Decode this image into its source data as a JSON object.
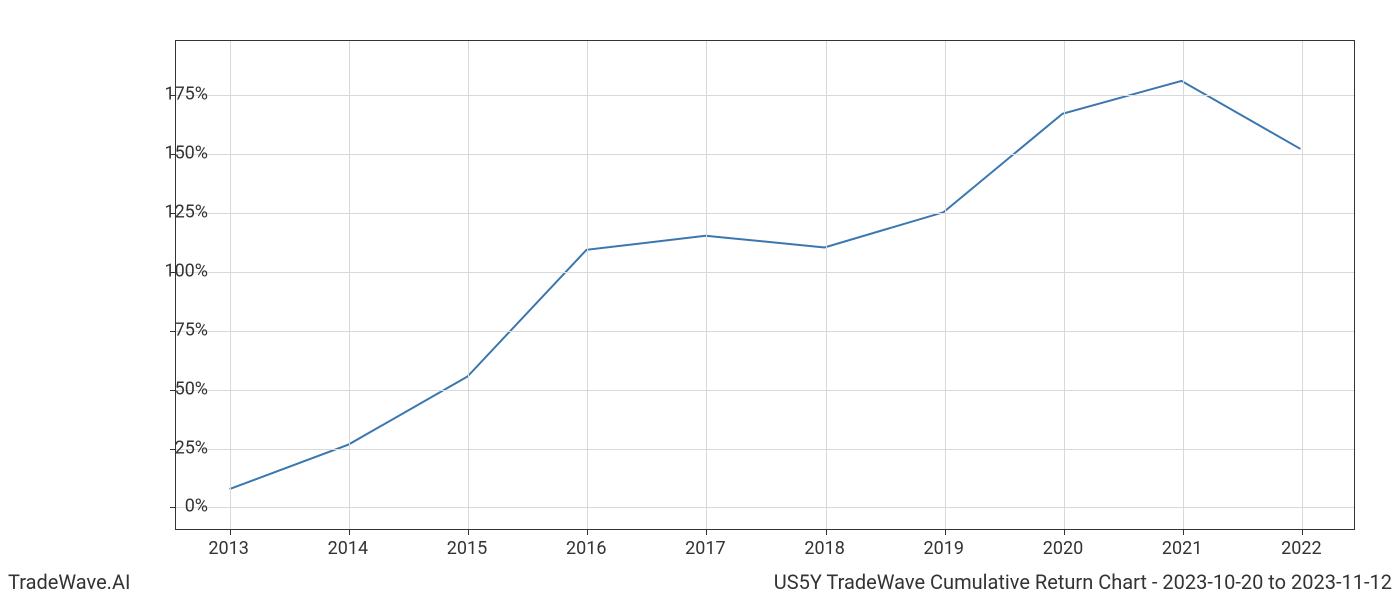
{
  "chart": {
    "type": "line",
    "background_color": "#ffffff",
    "grid_color": "#d9d9d9",
    "axis_color": "#333333",
    "line_color": "#3a76af",
    "line_width": 2,
    "x_categories": [
      "2013",
      "2014",
      "2015",
      "2016",
      "2017",
      "2018",
      "2019",
      "2020",
      "2021",
      "2022"
    ],
    "y_values": [
      7,
      26,
      55,
      109,
      115,
      110,
      125,
      167,
      181,
      152
    ],
    "y_ticks": [
      0,
      25,
      50,
      75,
      100,
      125,
      150,
      175
    ],
    "y_tick_labels": [
      "0%",
      "25%",
      "50%",
      "75%",
      "100%",
      "125%",
      "150%",
      "175%"
    ],
    "y_min": -10,
    "y_max": 198,
    "x_min": -0.45,
    "x_max": 9.45,
    "tick_fontsize": 18,
    "footer_fontsize": 20
  },
  "footer": {
    "left": "TradeWave.AI",
    "right": "US5Y TradeWave Cumulative Return Chart - 2023-10-20 to 2023-11-12"
  }
}
